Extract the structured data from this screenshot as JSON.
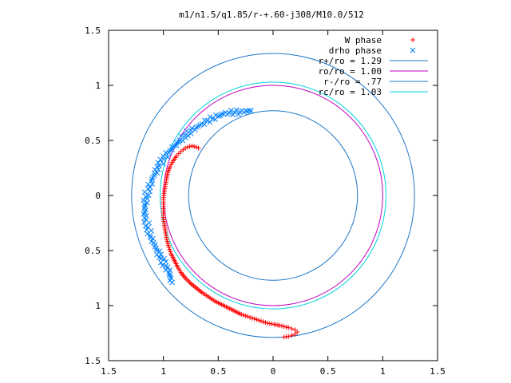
{
  "chart_data": {
    "type": "scatter",
    "title": "m1/n1.5/q1.85/r-+.60-j308/M10.0/512",
    "xlim": [
      -1.5,
      1.5
    ],
    "ylim": [
      -1.5,
      1.5
    ],
    "x_ticks": [
      -1.5,
      -1,
      -0.5,
      0,
      0.5,
      1,
      1.5
    ],
    "x_tick_labels": [
      "1.5",
      "1",
      "0.5",
      "0",
      "0.5",
      "1",
      "1.5"
    ],
    "y_ticks": [
      1.5,
      1,
      0.5,
      0,
      -0.5,
      -1,
      -1.5
    ],
    "y_tick_labels": [
      "1.5",
      "1",
      "0.5",
      "0",
      "0.5",
      "1",
      "1.5"
    ],
    "grid": false,
    "legend_position": "top-right",
    "series": [
      {
        "name": "W phase",
        "kind": "points",
        "marker": "plus",
        "color": "#ff0000",
        "points": [
          [
            -0.68,
            0.43
          ],
          [
            -0.7,
            0.44
          ],
          [
            -0.72,
            0.445
          ],
          [
            -0.74,
            0.45
          ],
          [
            -0.76,
            0.445
          ],
          [
            -0.78,
            0.44
          ],
          [
            -0.8,
            0.43
          ],
          [
            -0.82,
            0.415
          ],
          [
            -0.84,
            0.4
          ],
          [
            -0.86,
            0.38
          ],
          [
            -0.88,
            0.36
          ],
          [
            -0.9,
            0.33
          ],
          [
            -0.92,
            0.3
          ],
          [
            -0.94,
            0.26
          ],
          [
            -0.96,
            0.21
          ],
          [
            -0.97,
            0.16
          ],
          [
            -0.98,
            0.1
          ],
          [
            -0.99,
            0.04
          ],
          [
            -1.0,
            -0.02
          ],
          [
            -1.0,
            -0.08
          ],
          [
            -1.0,
            -0.14
          ],
          [
            -1.0,
            -0.2
          ],
          [
            -0.99,
            -0.27
          ],
          [
            -0.98,
            -0.34
          ],
          [
            -0.97,
            -0.4
          ],
          [
            -0.95,
            -0.47
          ],
          [
            -0.93,
            -0.53
          ],
          [
            -0.9,
            -0.59
          ],
          [
            -0.87,
            -0.65
          ],
          [
            -0.84,
            -0.7
          ],
          [
            -0.8,
            -0.75
          ],
          [
            -0.75,
            -0.8
          ],
          [
            -0.7,
            -0.84
          ],
          [
            -0.65,
            -0.88
          ],
          [
            -0.59,
            -0.92
          ],
          [
            -0.53,
            -0.96
          ],
          [
            -0.47,
            -0.99
          ],
          [
            -0.41,
            -1.02
          ],
          [
            -0.35,
            -1.05
          ],
          [
            -0.29,
            -1.08
          ],
          [
            -0.23,
            -1.1
          ],
          [
            -0.17,
            -1.12
          ],
          [
            -0.11,
            -1.14
          ],
          [
            -0.05,
            -1.16
          ],
          [
            0.01,
            -1.17
          ],
          [
            0.06,
            -1.18
          ],
          [
            0.1,
            -1.19
          ],
          [
            0.14,
            -1.2
          ],
          [
            0.17,
            -1.21
          ],
          [
            0.2,
            -1.22
          ],
          [
            0.22,
            -1.24
          ],
          [
            0.2,
            -1.26
          ],
          [
            0.17,
            -1.27
          ],
          [
            0.14,
            -1.28
          ],
          [
            0.1,
            -1.285
          ]
        ]
      },
      {
        "name": "drho phase",
        "kind": "points",
        "marker": "cross",
        "color": "#0080ff",
        "points": [
          [
            -0.2,
            0.77
          ],
          [
            -0.25,
            0.77
          ],
          [
            -0.3,
            0.76
          ],
          [
            -0.35,
            0.755
          ],
          [
            -0.4,
            0.75
          ],
          [
            -0.45,
            0.74
          ],
          [
            -0.5,
            0.72
          ],
          [
            -0.55,
            0.7
          ],
          [
            -0.6,
            0.68
          ],
          [
            -0.65,
            0.65
          ],
          [
            -0.7,
            0.62
          ],
          [
            -0.75,
            0.59
          ],
          [
            -0.8,
            0.55
          ],
          [
            -0.85,
            0.5
          ],
          [
            -0.9,
            0.45
          ],
          [
            -0.95,
            0.39
          ],
          [
            -1.0,
            0.33
          ],
          [
            -1.04,
            0.27
          ],
          [
            -1.08,
            0.2
          ],
          [
            -1.11,
            0.13
          ],
          [
            -1.14,
            0.06
          ],
          [
            -1.16,
            -0.01
          ],
          [
            -1.17,
            -0.08
          ],
          [
            -1.17,
            -0.15
          ],
          [
            -1.16,
            -0.22
          ],
          [
            -1.14,
            -0.29
          ],
          [
            -1.12,
            -0.36
          ],
          [
            -1.09,
            -0.43
          ],
          [
            -1.06,
            -0.5
          ],
          [
            -1.02,
            -0.57
          ],
          [
            -0.98,
            -0.64
          ],
          [
            -0.95,
            -0.7
          ],
          [
            -0.93,
            -0.75
          ],
          [
            -0.92,
            -0.79
          ]
        ]
      },
      {
        "name": "r+/ro = 1.29",
        "kind": "circle",
        "radius": 1.29,
        "color": "#1f78c8"
      },
      {
        "name": "ro/ro = 1.00",
        "kind": "circle",
        "radius": 1.0,
        "color": "#c000c0"
      },
      {
        "name": "r-/ro = .77",
        "kind": "circle",
        "radius": 0.77,
        "color": "#1f78c8"
      },
      {
        "name": "rc/ro = 1.03",
        "kind": "circle",
        "radius": 1.03,
        "color": "#00d0e0"
      }
    ]
  }
}
